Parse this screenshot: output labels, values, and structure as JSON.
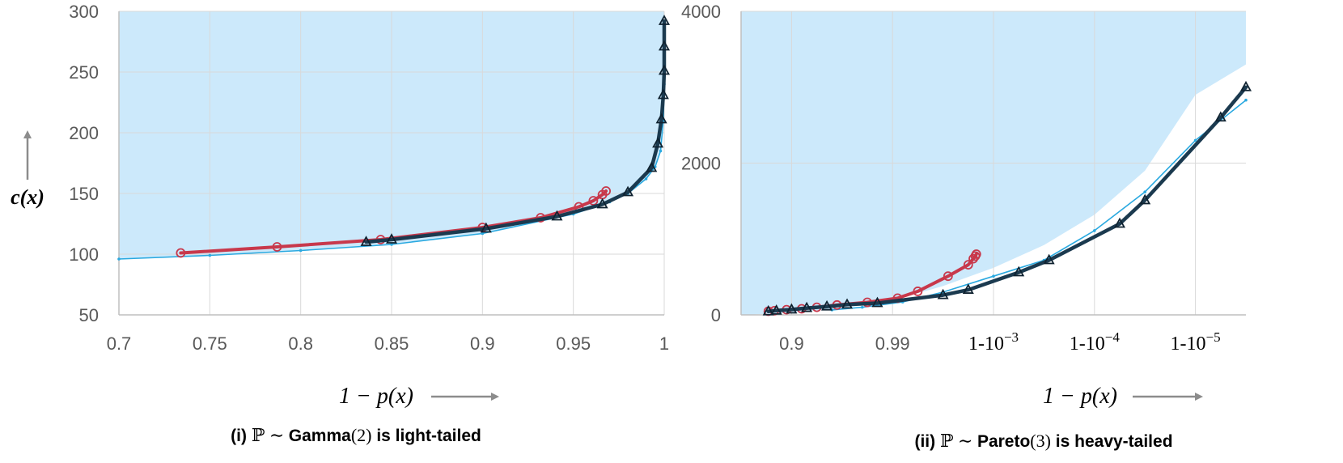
{
  "colors": {
    "region": "#cce9fb",
    "grid": "#d9d9d9",
    "dark": "#1b3a4f",
    "red": "#c8384b",
    "light": "#2aa9e0"
  },
  "chart_data": [
    {
      "type": "line",
      "xlim": [
        0.7,
        1.0
      ],
      "ylim": [
        50,
        300
      ],
      "x_ticks": [
        0.7,
        0.75,
        0.8,
        0.85,
        0.9,
        0.95,
        1.0
      ],
      "x_tick_labels": [
        "0.7",
        "0.75",
        "0.8",
        "0.85",
        "0.9",
        "0.95",
        "1"
      ],
      "y_ticks": [
        50,
        100,
        150,
        200,
        250,
        300
      ],
      "y_tick_labels": [
        "50",
        "100",
        "150",
        "200",
        "250",
        "300"
      ],
      "ylabel": "c(x)",
      "xlabel": "1 − p(x)",
      "caption": {
        "prefix": "(i) ",
        "math1": "ℙ ∼ ",
        "dist": "Gamma",
        "param": "(2)",
        "suffix": " is light-tailed"
      },
      "grid": true,
      "region": [
        [
          0.7,
          96
        ],
        [
          0.75,
          99
        ],
        [
          0.8,
          103
        ],
        [
          0.85,
          108
        ],
        [
          0.9,
          117
        ],
        [
          0.95,
          133
        ],
        [
          0.97,
          143
        ],
        [
          0.98,
          150
        ],
        [
          0.99,
          162
        ],
        [
          0.995,
          172
        ],
        [
          0.998,
          185
        ],
        [
          0.9995,
          210
        ],
        [
          1.0,
          240
        ],
        [
          1.0,
          300
        ],
        [
          0.7,
          300
        ]
      ],
      "series": [
        {
          "style": "light",
          "points": [
            [
              0.7,
              96
            ],
            [
              0.75,
              99
            ],
            [
              0.8,
              103
            ],
            [
              0.85,
              108
            ],
            [
              0.9,
              117
            ],
            [
              0.95,
              133
            ],
            [
              0.97,
              143
            ],
            [
              0.98,
              150
            ],
            [
              0.99,
              162
            ],
            [
              0.995,
              172
            ],
            [
              0.998,
              185
            ],
            [
              0.9995,
              210
            ],
            [
              1.0,
              240
            ]
          ]
        },
        {
          "style": "red",
          "points": [
            [
              0.734,
              101
            ],
            [
              0.787,
              106
            ],
            [
              0.844,
              112
            ],
            [
              0.9,
              122
            ],
            [
              0.932,
              130
            ],
            [
              0.953,
              139
            ],
            [
              0.961,
              144
            ],
            [
              0.966,
              149
            ],
            [
              0.968,
              152
            ]
          ]
        },
        {
          "style": "dark",
          "points": [
            [
              0.836,
              110
            ],
            [
              0.85,
              112
            ],
            [
              0.902,
              121
            ],
            [
              0.941,
              131
            ],
            [
              0.966,
              141
            ],
            [
              0.98,
              151
            ],
            [
              0.993,
              171
            ],
            [
              0.9965,
              191
            ],
            [
              0.9985,
              211
            ],
            [
              0.9995,
              231
            ],
            [
              1.0,
              251
            ],
            [
              1.0,
              271
            ],
            [
              1.0,
              292
            ]
          ]
        }
      ]
    },
    {
      "type": "line",
      "x_scale": "log-tail",
      "xlim": [
        0,
        5
      ],
      "ylim": [
        0,
        4000
      ],
      "x_tick_positions": [
        0.5,
        1.5,
        2.5,
        3.5,
        4.5
      ],
      "x_tick_labels": [
        "0.9",
        "0.99",
        "1-10−3",
        "1-10−4",
        "1-10−5"
      ],
      "y_ticks": [
        0,
        2000,
        4000
      ],
      "y_tick_labels": [
        "0",
        "2000",
        "4000"
      ],
      "xlabel": "1 − p(x)",
      "caption": {
        "prefix": "(ii) ",
        "math1": "ℙ ∼ ",
        "dist": "Pareto",
        "param": "(3)",
        "suffix": " is heavy-tailed"
      },
      "grid": true,
      "region": [
        [
          0,
          0
        ],
        [
          0.5,
          25
        ],
        [
          1.0,
          90
        ],
        [
          1.5,
          190
        ],
        [
          2.0,
          380
        ],
        [
          2.5,
          620
        ],
        [
          3.0,
          920
        ],
        [
          3.5,
          1320
        ],
        [
          4.0,
          1900
        ],
        [
          4.5,
          2900
        ],
        [
          5,
          3300
        ],
        [
          5,
          4000
        ],
        [
          0,
          4000
        ]
      ],
      "series": [
        {
          "style": "light",
          "points": [
            [
              0.9,
              65
            ],
            [
              1.2,
              100
            ],
            [
              1.6,
              170
            ],
            [
              2.0,
              300
            ],
            [
              2.5,
              510
            ],
            [
              3.0,
              720
            ],
            [
              3.5,
              1110
            ],
            [
              4.0,
              1620
            ],
            [
              4.5,
              2300
            ],
            [
              5.0,
              2830
            ]
          ]
        },
        {
          "style": "red",
          "points": [
            [
              0.27,
              48
            ],
            [
              0.33,
              55
            ],
            [
              0.45,
              68
            ],
            [
              0.6,
              80
            ],
            [
              0.75,
              100
            ],
            [
              0.95,
              130
            ],
            [
              1.25,
              165
            ],
            [
              1.55,
              220
            ],
            [
              1.75,
              310
            ],
            [
              2.05,
              510
            ],
            [
              2.25,
              660
            ],
            [
              2.3,
              740
            ],
            [
              2.32,
              775
            ],
            [
              2.33,
              800
            ]
          ]
        },
        {
          "style": "dark",
          "points": [
            [
              0.27,
              45
            ],
            [
              0.35,
              55
            ],
            [
              0.5,
              70
            ],
            [
              0.65,
              90
            ],
            [
              0.85,
              110
            ],
            [
              1.05,
              135
            ],
            [
              1.35,
              155
            ],
            [
              2.0,
              260
            ],
            [
              2.25,
              330
            ],
            [
              2.75,
              560
            ],
            [
              3.05,
              720
            ],
            [
              3.75,
              1200
            ],
            [
              4.0,
              1510
            ],
            [
              4.75,
              2600
            ],
            [
              5.0,
              3000
            ]
          ]
        }
      ]
    }
  ]
}
